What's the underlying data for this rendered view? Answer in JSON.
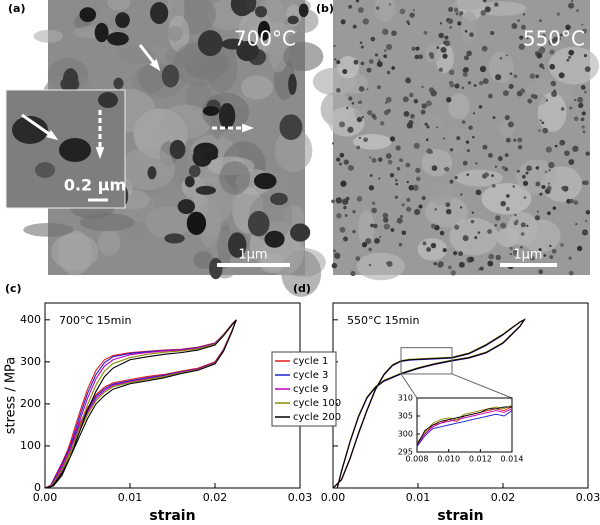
{
  "images": [
    {
      "panel_label": "(a)",
      "label": "700°C",
      "scale_bar": "1µm",
      "inset_scale_bar": "0.2 µm"
    },
    {
      "panel_label": "(b)",
      "label": "550°C",
      "scale_bar": "1µm"
    }
  ],
  "chart_data": [
    {
      "type": "line",
      "panel_label": "(c)",
      "title": "700°C 15min",
      "xlabel": "strain",
      "ylabel": "stress / MPa",
      "xlim": [
        0,
        0.03
      ],
      "ylim": [
        0,
        440
      ],
      "xticks": [
        {
          "value": 0,
          "label": "0.00"
        },
        {
          "value": 0.01,
          "label": "0.01"
        },
        {
          "value": 0.02,
          "label": "0.02"
        },
        {
          "value": 0.03,
          "label": "0.03"
        }
      ],
      "yticks": [
        0,
        100,
        200,
        300,
        400
      ],
      "show_ytick_labels": true,
      "series": [
        {
          "color": "#e41a1c",
          "x": [
            0,
            0.001,
            0.002,
            0.003,
            0.004,
            0.005,
            0.006,
            0.007,
            0.008,
            0.01,
            0.012,
            0.014,
            0.016,
            0.018,
            0.02,
            0.021,
            0.022,
            0.0225,
            0.022,
            0.021,
            0.02,
            0.018,
            0.016,
            0.014,
            0.012,
            0.01,
            0.008,
            0.007,
            0.006,
            0.005,
            0.004,
            0.003,
            0.002,
            0.001,
            0.0005
          ],
          "values": [
            0,
            10,
            50,
            110,
            175,
            235,
            280,
            305,
            315,
            322,
            325,
            328,
            330,
            335,
            345,
            365,
            390,
            400,
            375,
            330,
            300,
            285,
            278,
            270,
            265,
            258,
            250,
            240,
            222,
            190,
            150,
            105,
            60,
            20,
            0
          ]
        },
        {
          "color": "#2020d0",
          "x": [
            0,
            0.001,
            0.002,
            0.003,
            0.004,
            0.005,
            0.006,
            0.007,
            0.008,
            0.01,
            0.012,
            0.014,
            0.016,
            0.018,
            0.02,
            0.021,
            0.022,
            0.0225,
            0.022,
            0.021,
            0.02,
            0.018,
            0.016,
            0.014,
            0.012,
            0.01,
            0.008,
            0.007,
            0.006,
            0.005,
            0.004,
            0.003,
            0.002,
            0.001,
            0.0005
          ],
          "values": [
            0,
            8,
            45,
            100,
            165,
            225,
            270,
            298,
            312,
            320,
            324,
            327,
            329,
            334,
            344,
            364,
            389,
            400,
            374,
            328,
            298,
            283,
            276,
            268,
            262,
            255,
            247,
            236,
            218,
            185,
            145,
            100,
            56,
            18,
            0
          ]
        },
        {
          "color": "#c000c0",
          "x": [
            0,
            0.001,
            0.002,
            0.003,
            0.004,
            0.005,
            0.006,
            0.007,
            0.008,
            0.01,
            0.012,
            0.014,
            0.016,
            0.018,
            0.02,
            0.021,
            0.022,
            0.0225,
            0.022,
            0.021,
            0.02,
            0.018,
            0.016,
            0.014,
            0.012,
            0.01,
            0.008,
            0.007,
            0.006,
            0.005,
            0.004,
            0.003,
            0.002,
            0.001,
            0.0005
          ],
          "values": [
            0,
            7,
            40,
            92,
            155,
            213,
            260,
            290,
            305,
            317,
            322,
            326,
            328,
            333,
            343,
            363,
            389,
            400,
            373,
            327,
            297,
            282,
            275,
            266,
            260,
            253,
            244,
            232,
            213,
            180,
            140,
            95,
            52,
            15,
            0
          ]
        },
        {
          "color": "#8a8a00",
          "x": [
            0,
            0.001,
            0.002,
            0.003,
            0.004,
            0.005,
            0.006,
            0.007,
            0.008,
            0.01,
            0.012,
            0.014,
            0.016,
            0.018,
            0.02,
            0.021,
            0.022,
            0.0225,
            0.022,
            0.021,
            0.02,
            0.018,
            0.016,
            0.014,
            0.012,
            0.01,
            0.008,
            0.007,
            0.006,
            0.005,
            0.004,
            0.003,
            0.002,
            0.001,
            0.0005
          ],
          "values": [
            0,
            6,
            35,
            83,
            142,
            198,
            245,
            278,
            296,
            310,
            318,
            323,
            326,
            331,
            342,
            363,
            388,
            400,
            373,
            326,
            296,
            281,
            274,
            265,
            258,
            251,
            241,
            228,
            208,
            174,
            132,
            88,
            45,
            12,
            0
          ]
        },
        {
          "color": "#000000",
          "x": [
            0,
            0.001,
            0.002,
            0.003,
            0.004,
            0.005,
            0.006,
            0.007,
            0.008,
            0.01,
            0.012,
            0.014,
            0.016,
            0.018,
            0.02,
            0.021,
            0.022,
            0.0225,
            0.022,
            0.021,
            0.02,
            0.018,
            0.016,
            0.014,
            0.012,
            0.01,
            0.008,
            0.007,
            0.006,
            0.005,
            0.004,
            0.003,
            0.002,
            0.001,
            0.0005
          ],
          "values": [
            0,
            5,
            30,
            75,
            130,
            185,
            230,
            265,
            285,
            305,
            312,
            318,
            322,
            328,
            340,
            362,
            388,
            400,
            372,
            325,
            295,
            280,
            272,
            262,
            255,
            248,
            235,
            220,
            200,
            165,
            120,
            75,
            35,
            8,
            0
          ]
        }
      ]
    },
    {
      "type": "line",
      "panel_label": "(d)",
      "title": "550°C 15min",
      "xlabel": "strain",
      "legend": "left",
      "xlim": [
        0,
        0.03
      ],
      "ylim": [
        0,
        440
      ],
      "xticks": [
        {
          "value": 0,
          "label": "0.00"
        },
        {
          "value": 0.01,
          "label": "0.01"
        },
        {
          "value": 0.02,
          "label": "0.02"
        },
        {
          "value": 0.03,
          "label": "0.03"
        }
      ],
      "yticks": [
        0,
        100,
        200,
        300,
        400
      ],
      "show_ytick_labels": false,
      "series": [
        {
          "name": "cycle 1",
          "color": "#e41a1c",
          "x": [
            0,
            0.001,
            0.002,
            0.003,
            0.004,
            0.005,
            0.006,
            0.007,
            0.008,
            0.009,
            0.01,
            0.012,
            0.014,
            0.016,
            0.018,
            0.02,
            0.021,
            0.022,
            0.0225,
            0.022,
            0.02,
            0.018,
            0.016,
            0.014,
            0.012,
            0.01,
            0.008,
            0.006,
            0.005,
            0.004,
            0.003,
            0.002,
            0.001,
            0.0005
          ],
          "values": [
            0,
            20,
            70,
            130,
            185,
            235,
            270,
            292,
            302,
            305,
            306,
            308,
            310,
            320,
            340,
            365,
            380,
            395,
            400,
            385,
            345,
            322,
            310,
            303,
            295,
            285,
            272,
            255,
            240,
            215,
            170,
            110,
            40,
            0
          ]
        },
        {
          "name": "cycle 3",
          "color": "#2020d0",
          "x": [
            0,
            0.001,
            0.002,
            0.003,
            0.004,
            0.005,
            0.006,
            0.007,
            0.008,
            0.009,
            0.01,
            0.012,
            0.014,
            0.016,
            0.018,
            0.02,
            0.021,
            0.022,
            0.0225,
            0.022,
            0.02,
            0.018,
            0.016,
            0.014,
            0.012,
            0.01,
            0.008,
            0.006,
            0.005,
            0.004,
            0.003,
            0.002,
            0.001,
            0.0005
          ],
          "values": [
            0,
            19,
            69,
            129,
            184,
            234,
            269,
            291,
            301,
            304,
            305,
            307,
            309,
            319,
            339,
            364,
            380,
            395,
            400,
            384,
            344,
            321,
            309,
            302,
            294,
            284,
            271,
            254,
            239,
            214,
            169,
            109,
            39,
            0
          ]
        },
        {
          "name": "cycle 9",
          "color": "#c000c0",
          "x": [
            0,
            0.001,
            0.002,
            0.003,
            0.004,
            0.005,
            0.006,
            0.007,
            0.008,
            0.009,
            0.01,
            0.012,
            0.014,
            0.016,
            0.018,
            0.02,
            0.021,
            0.022,
            0.0225,
            0.022,
            0.02,
            0.018,
            0.016,
            0.014,
            0.012,
            0.01,
            0.008,
            0.006,
            0.005,
            0.004,
            0.003,
            0.002,
            0.001,
            0.0005
          ],
          "values": [
            0,
            19,
            70,
            130,
            185,
            235,
            270,
            292,
            302,
            305,
            306,
            308,
            310,
            320,
            340,
            365,
            380,
            395,
            400,
            385,
            345,
            322,
            310,
            303,
            295,
            285,
            272,
            255,
            240,
            215,
            170,
            110,
            40,
            0
          ]
        },
        {
          "name": "cycle 100",
          "color": "#8a8a00",
          "x": [
            0,
            0.001,
            0.002,
            0.003,
            0.004,
            0.005,
            0.006,
            0.007,
            0.008,
            0.009,
            0.01,
            0.012,
            0.014,
            0.016,
            0.018,
            0.02,
            0.021,
            0.022,
            0.0225,
            0.022,
            0.02,
            0.018,
            0.016,
            0.014,
            0.012,
            0.01,
            0.008,
            0.006,
            0.005,
            0.004,
            0.003,
            0.002,
            0.001,
            0.0005
          ],
          "values": [
            0,
            20,
            71,
            131,
            186,
            236,
            271,
            293,
            303,
            306,
            307,
            309,
            311,
            321,
            341,
            366,
            381,
            395,
            400,
            385,
            346,
            323,
            311,
            304,
            296,
            286,
            273,
            256,
            241,
            216,
            171,
            111,
            41,
            0
          ]
        },
        {
          "name": "cycle 200",
          "color": "#000000",
          "x": [
            0,
            0.001,
            0.002,
            0.003,
            0.004,
            0.005,
            0.006,
            0.007,
            0.008,
            0.009,
            0.01,
            0.012,
            0.014,
            0.016,
            0.018,
            0.02,
            0.021,
            0.022,
            0.0225,
            0.022,
            0.02,
            0.018,
            0.016,
            0.014,
            0.012,
            0.01,
            0.008,
            0.006,
            0.005,
            0.004,
            0.003,
            0.002,
            0.001,
            0.0005
          ],
          "values": [
            0,
            20,
            70,
            130,
            185,
            235,
            270,
            292,
            302,
            305,
            306,
            308,
            310,
            320,
            340,
            365,
            380,
            395,
            400,
            385,
            345,
            322,
            310,
            303,
            295,
            285,
            272,
            255,
            240,
            215,
            170,
            110,
            40,
            0
          ]
        }
      ],
      "inset": {
        "type": "line",
        "xlim": [
          0.008,
          0.014
        ],
        "ylim": [
          295,
          310
        ],
        "xticks": [
          0.008,
          {
            "value": 0.01,
            "label": "0.010"
          },
          0.012,
          0.014
        ],
        "yticks": [
          295,
          300,
          305,
          310
        ],
        "show_ytick_labels": true,
        "series": [
          {
            "color": "#e41a1c",
            "x": [
              0.008,
              0.0085,
              0.009,
              0.0095,
              0.01,
              0.0105,
              0.011,
              0.0115,
              0.012,
              0.0125,
              0.013,
              0.0135,
              0.014
            ],
            "values": [
              297,
              300,
              302.5,
              303,
              304,
              303.5,
              305,
              305.5,
              306,
              306.5,
              307,
              306.5,
              307.5
            ]
          },
          {
            "color": "#2020d0",
            "x": [
              0.008,
              0.0085,
              0.009,
              0.0095,
              0.01,
              0.0105,
              0.011,
              0.0115,
              0.012,
              0.0125,
              0.013,
              0.0135,
              0.014
            ],
            "values": [
              296.5,
              299.5,
              301.5,
              302,
              302.5,
              303,
              303.5,
              304,
              304.5,
              305,
              305.5,
              305,
              306.5
            ]
          },
          {
            "color": "#c000c0",
            "x": [
              0.008,
              0.0085,
              0.009,
              0.0095,
              0.01,
              0.0105,
              0.011,
              0.0115,
              0.012,
              0.0125,
              0.013,
              0.0135,
              0.014
            ],
            "values": [
              297,
              300,
              302,
              303,
              303.5,
              304,
              304.5,
              305,
              305.5,
              306,
              306.5,
              306,
              307
            ]
          },
          {
            "color": "#8a8a00",
            "x": [
              0.008,
              0.0085,
              0.009,
              0.0095,
              0.01,
              0.0105,
              0.011,
              0.0115,
              0.012,
              0.0125,
              0.013,
              0.0135,
              0.014
            ],
            "values": [
              297.5,
              300.5,
              303,
              304,
              304.5,
              304,
              305.5,
              306,
              306.5,
              307,
              307.5,
              307,
              308
            ]
          },
          {
            "color": "#000000",
            "x": [
              0.008,
              0.0085,
              0.009,
              0.0095,
              0.01,
              0.0105,
              0.011,
              0.0115,
              0.012,
              0.0125,
              0.013,
              0.0135,
              0.014
            ],
            "values": [
              297,
              301,
              302.5,
              303.5,
              304,
              304.5,
              305,
              305.5,
              306,
              307,
              307,
              307.5,
              307.5
            ]
          }
        ]
      }
    }
  ]
}
